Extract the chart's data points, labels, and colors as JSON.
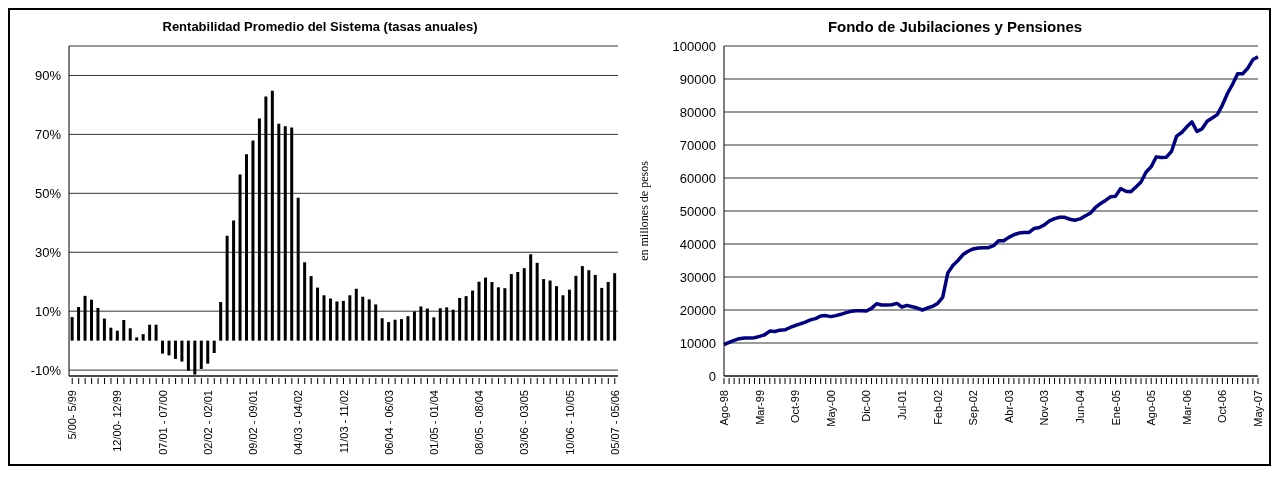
{
  "chart_data": [
    {
      "type": "bar",
      "title": "Rentabilidad Promedio del Sistema (tasas anuales)",
      "categories": [
        "5/00- 5/99",
        null,
        null,
        null,
        null,
        null,
        null,
        "12/00- 12/99",
        null,
        null,
        null,
        null,
        null,
        null,
        "07/01 - 07/00",
        null,
        null,
        null,
        null,
        null,
        null,
        "02/02 - 02/01",
        null,
        null,
        null,
        null,
        null,
        null,
        "09/02 - 09/01",
        null,
        null,
        null,
        null,
        null,
        null,
        "04/03 - 04/02",
        null,
        null,
        null,
        null,
        null,
        null,
        "11/03 - 11/02",
        null,
        null,
        null,
        null,
        null,
        null,
        "06/04 - 06/03",
        null,
        null,
        null,
        null,
        null,
        null,
        "01/05 - 01/04",
        null,
        null,
        null,
        null,
        null,
        null,
        "08/05 - 08/04",
        null,
        null,
        null,
        null,
        null,
        null,
        "03/06 - 03/05",
        null,
        null,
        null,
        null,
        null,
        null,
        "10/06 - 10/05",
        null,
        null,
        null,
        null,
        null,
        null,
        "05/07 - 05/06"
      ],
      "values": [
        8,
        11.4,
        15.2,
        13.9,
        11.1,
        7.5,
        4.4,
        3.4,
        7,
        4.2,
        1.1,
        2.2,
        5.4,
        5.4,
        -4.4,
        -5,
        -6.2,
        -7.1,
        -10.2,
        -11.5,
        -9.6,
        -7.8,
        -4.2,
        13.1,
        35.6,
        40.8,
        56.4,
        63.3,
        67.9,
        75.4,
        82.9,
        84.8,
        73.6,
        72.8,
        72.3,
        48.5,
        26.6,
        21.9,
        18,
        15.4,
        14.3,
        13.3,
        13.5,
        15.4,
        17.6,
        14.9,
        14,
        12.3,
        7.6,
        6.3,
        7.1,
        7.3,
        8.3,
        9.9,
        11.6,
        10.9,
        7.9,
        11,
        11.3,
        10.5,
        14.5,
        15.1,
        17,
        20,
        21.4,
        19.9,
        18.1,
        17.8,
        22.6,
        23.3,
        24.6,
        29.3,
        26.4,
        20.9,
        20.4,
        18.5,
        15.4,
        17.3,
        22,
        25.3,
        23.9,
        22.3,
        17.9,
        19.9,
        22.9
      ],
      "color": "#000000",
      "ylim": [
        -12,
        100
      ],
      "yticks": [
        {
          "value": -10,
          "label": "-10%"
        },
        {
          "value": 10,
          "label": "10%"
        },
        {
          "value": 30,
          "label": "30%"
        },
        {
          "value": 50,
          "label": "50%"
        },
        {
          "value": 70,
          "label": "70%"
        },
        {
          "value": 90,
          "label": "90%"
        }
      ],
      "grid": "y"
    },
    {
      "type": "line",
      "title": "Fondo de Jubilaciones y Pensiones",
      "ylabel": "en millones de pesos",
      "categories": [
        "Ago-98",
        null,
        null,
        null,
        null,
        null,
        null,
        "Mar-99",
        null,
        null,
        null,
        null,
        null,
        null,
        "Oct-99",
        null,
        null,
        null,
        null,
        null,
        null,
        "May-00",
        null,
        null,
        null,
        null,
        null,
        null,
        "Dic-00",
        null,
        null,
        null,
        null,
        null,
        null,
        "Jul-01",
        null,
        null,
        null,
        null,
        null,
        null,
        "Feb-02",
        null,
        null,
        null,
        null,
        null,
        null,
        "Sep-02",
        null,
        null,
        null,
        null,
        null,
        null,
        "Abr-03",
        null,
        null,
        null,
        null,
        null,
        null,
        "Nov-03",
        null,
        null,
        null,
        null,
        null,
        null,
        "Jun-04",
        null,
        null,
        null,
        null,
        null,
        null,
        "Ene-05",
        null,
        null,
        null,
        null,
        null,
        null,
        "Ago-05",
        null,
        null,
        null,
        null,
        null,
        null,
        "Mar-06",
        null,
        null,
        null,
        null,
        null,
        null,
        "Oct-06",
        null,
        null,
        null,
        null,
        null,
        null,
        "May-07"
      ],
      "values": [
        9500,
        10200,
        10800,
        11300,
        11500,
        11500,
        11600,
        12000,
        12500,
        13600,
        13500,
        13900,
        14000,
        14700,
        15300,
        15800,
        16300,
        17000,
        17400,
        18200,
        18300,
        18000,
        18300,
        18700,
        19200,
        19600,
        19800,
        19800,
        19700,
        20500,
        21900,
        21500,
        21500,
        21600,
        22000,
        20900,
        21400,
        21000,
        20600,
        20000,
        20600,
        21100,
        22000,
        23800,
        31200,
        33500,
        35000,
        36800,
        37800,
        38500,
        38800,
        38900,
        38900,
        39500,
        41000,
        41000,
        42000,
        42800,
        43300,
        43500,
        43500,
        44700,
        45000,
        45800,
        47000,
        47700,
        48100,
        48100,
        47500,
        47200,
        47600,
        48500,
        49300,
        51000,
        52200,
        53200,
        54300,
        54500,
        56800,
        56000,
        55800,
        57300,
        58800,
        61800,
        63400,
        66400,
        66200,
        66300,
        68100,
        72700,
        73800,
        75500,
        77000,
        74100,
        74900,
        77200,
        78200,
        79200,
        82100,
        85600,
        88400,
        91600,
        91600,
        93300,
        95900,
        96700
      ],
      "color": "#000080",
      "ylim": [
        0,
        100000
      ],
      "yticks": [
        0,
        10000,
        20000,
        30000,
        40000,
        50000,
        60000,
        70000,
        80000,
        90000,
        100000
      ],
      "grid": "y"
    }
  ]
}
